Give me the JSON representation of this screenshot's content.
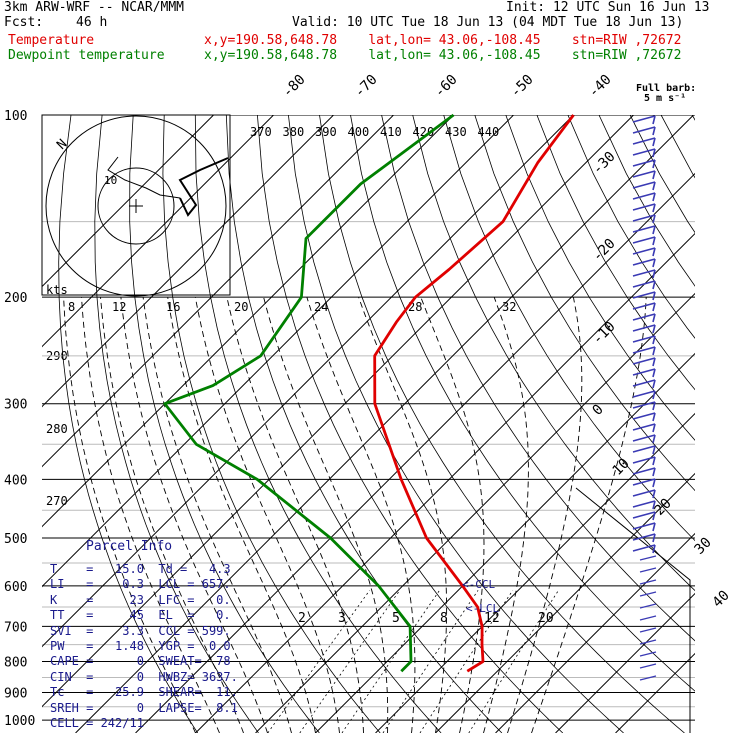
{
  "header": {
    "model": "3km ARW-WRF -- NCAR/MMM",
    "init": "Init: 12 UTC Sun 16 Jun 13",
    "fcst_label": "Fcst:",
    "fcst_value": "46 h",
    "valid": "Valid: 10 UTC Tue 18 Jun 13 (04 MDT Tue 18 Jun 13)",
    "temp_label": "Temperature",
    "dew_label": "Dewpoint temperature",
    "loc_line": "x,y=190.58,648.78    lat,lon= 43.06,-108.45    stn=RIW ,72672"
  },
  "full_barb": {
    "line1": "Full barb:",
    "line2": "5 m s⁻¹"
  },
  "parcel_info": {
    "title": "Parcel Info",
    "rows": [
      "T    =   15.0  Td =   4.3",
      "LI   =    0.3  LCL = 657.",
      "K    =     23  LFC =   0.",
      "TT   =     45  EL  =   0.",
      "SVI  =    3.3  CCL = 599.",
      "PW   =   1.48  YGP =  0.0",
      "CAPE =      0  SWEAT=  78",
      "CIN  =      0  HWBZ= 3637.",
      "Tc   =   25.9  SHEAR=  11.",
      "SREH =      0  LAPSE=  8.1",
      "CELL = 242/11"
    ]
  },
  "chart_data": {
    "type": "line",
    "title": "",
    "xlabel": "",
    "ylabel": "",
    "pressure_levels": [
      100,
      200,
      300,
      400,
      500,
      600,
      700,
      800,
      900,
      1000
    ],
    "temperature_ticks": [
      -80,
      -70,
      -60,
      -50,
      -40,
      -30,
      -20,
      -10,
      0,
      10,
      20,
      30,
      40
    ],
    "theta_top_labels": [
      370,
      380,
      390,
      400,
      410,
      420,
      430,
      440
    ],
    "theta_side_labels": [
      290,
      280,
      270
    ],
    "theta_e_labels": [
      8,
      12,
      16,
      20,
      24,
      28,
      32
    ],
    "mixing_ratio_labels": [
      2,
      3,
      5,
      8,
      12,
      20
    ],
    "annotations": [
      "kts",
      "N",
      "<-CCL",
      "<-LCL"
    ],
    "hodograph": {
      "ring_labels": [
        "10"
      ],
      "units": "kts"
    },
    "series": [
      {
        "name": "Temperature",
        "color": "#e00000",
        "p": [
          100,
          120,
          150,
          180,
          200,
          220,
          250,
          300,
          400,
          500,
          600,
          650,
          700,
          750,
          800,
          830
        ],
        "t": [
          -60,
          -58,
          -54,
          -55,
          -56,
          -55,
          -53,
          -45,
          -28,
          -14,
          0,
          6,
          10,
          13,
          16,
          15
        ]
      },
      {
        "name": "Dewpoint temperature",
        "color": "#008000",
        "p": [
          100,
          130,
          160,
          200,
          250,
          280,
          300,
          350,
          400,
          500,
          600,
          700,
          800,
          830
        ],
        "t": [
          -80,
          -84,
          -84,
          -75,
          -72,
          -75,
          -80,
          -68,
          -52,
          -30,
          -14,
          -2,
          4,
          4
        ]
      }
    ],
    "wind_barbs": {
      "units": "m s-1",
      "levels": [
        100,
        200,
        300,
        400,
        500,
        600,
        700,
        800
      ]
    },
    "ylim": [
      1000,
      100
    ],
    "yscale": "log",
    "grid": true,
    "legend": "top-left"
  }
}
